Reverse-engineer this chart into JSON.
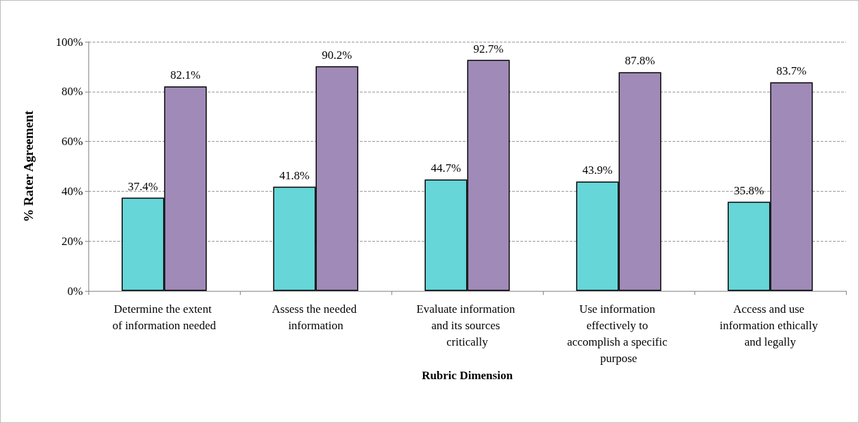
{
  "chart_data": {
    "type": "bar",
    "xlabel": "Rubric Dimension",
    "ylabel": "% Rater Agreement",
    "categories": [
      "Determine the extent of information needed",
      "Assess the needed information",
      "Evaluate information and its sources critically",
      "Use information effectively to accomplish a specific purpose",
      "Access and use information ethically and legally"
    ],
    "series": [
      {
        "color": "#66d6d9",
        "values": [
          37.4,
          41.8,
          44.7,
          43.9,
          35.8
        ],
        "value_labels": [
          "37.4%",
          "41.8%",
          "44.7%",
          "43.9%",
          "35.8%"
        ]
      },
      {
        "color": "#a08ab8",
        "values": [
          82.1,
          90.2,
          92.7,
          87.8,
          83.7
        ],
        "value_labels": [
          "82.1%",
          "90.2%",
          "92.7%",
          "87.8%",
          "83.7%"
        ]
      }
    ],
    "ylim": [
      0,
      100
    ],
    "yticks": [
      {
        "value": 0,
        "label": "0%"
      },
      {
        "value": 20,
        "label": "20%"
      },
      {
        "value": 40,
        "label": "40%"
      },
      {
        "value": 60,
        "label": "60%"
      },
      {
        "value": 80,
        "label": "80%"
      },
      {
        "value": 100,
        "label": "100%"
      }
    ],
    "grid": "y"
  }
}
